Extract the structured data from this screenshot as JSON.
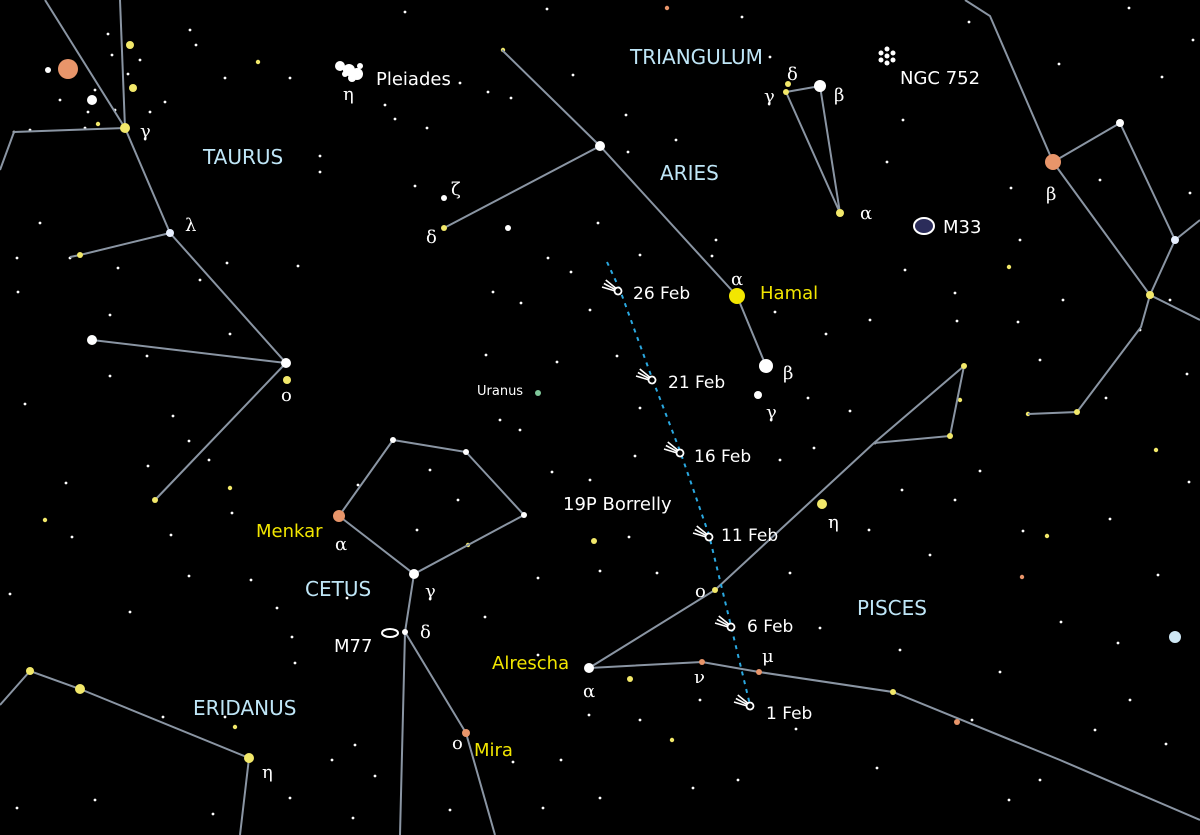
{
  "constellations": {
    "taurus": "TAURUS",
    "triangulum": "TRIANGULUM",
    "aries": "ARIES",
    "cetus": "CETUS",
    "pisces": "PISCES",
    "eridanus": "ERIDANUS"
  },
  "named_stars": {
    "hamal": "Hamal",
    "menkar": "Menkar",
    "alrescha": "Alrescha",
    "mira": "Mira"
  },
  "objects": {
    "pleiades": "Pleiades",
    "ngc752": "NGC 752",
    "m33": "M33",
    "m77": "M77",
    "uranus": "Uranus",
    "comet": "19P Borrelly"
  },
  "comet_dates": [
    "26 Feb",
    "21 Feb",
    "16 Feb",
    "11 Feb",
    "6 Feb",
    "1 Feb"
  ],
  "greek": {
    "alpha": "α",
    "beta": "β",
    "gamma": "γ",
    "delta": "δ",
    "eta": "η",
    "zeta": "ζ",
    "lambda": "λ",
    "omicron": "ο",
    "mu": "μ",
    "nu": "ν"
  },
  "colors": {
    "background": "#000000",
    "constellation_line": "#8a95a3",
    "constellation_name": "#bfe6f7",
    "star_name": "#f2e600",
    "comet_track": "#2aa8e0",
    "orange_star": "#e8956a"
  },
  "icons": [
    "comet-icon",
    "galaxy-icon",
    "cluster-icon",
    "planet-icon"
  ]
}
